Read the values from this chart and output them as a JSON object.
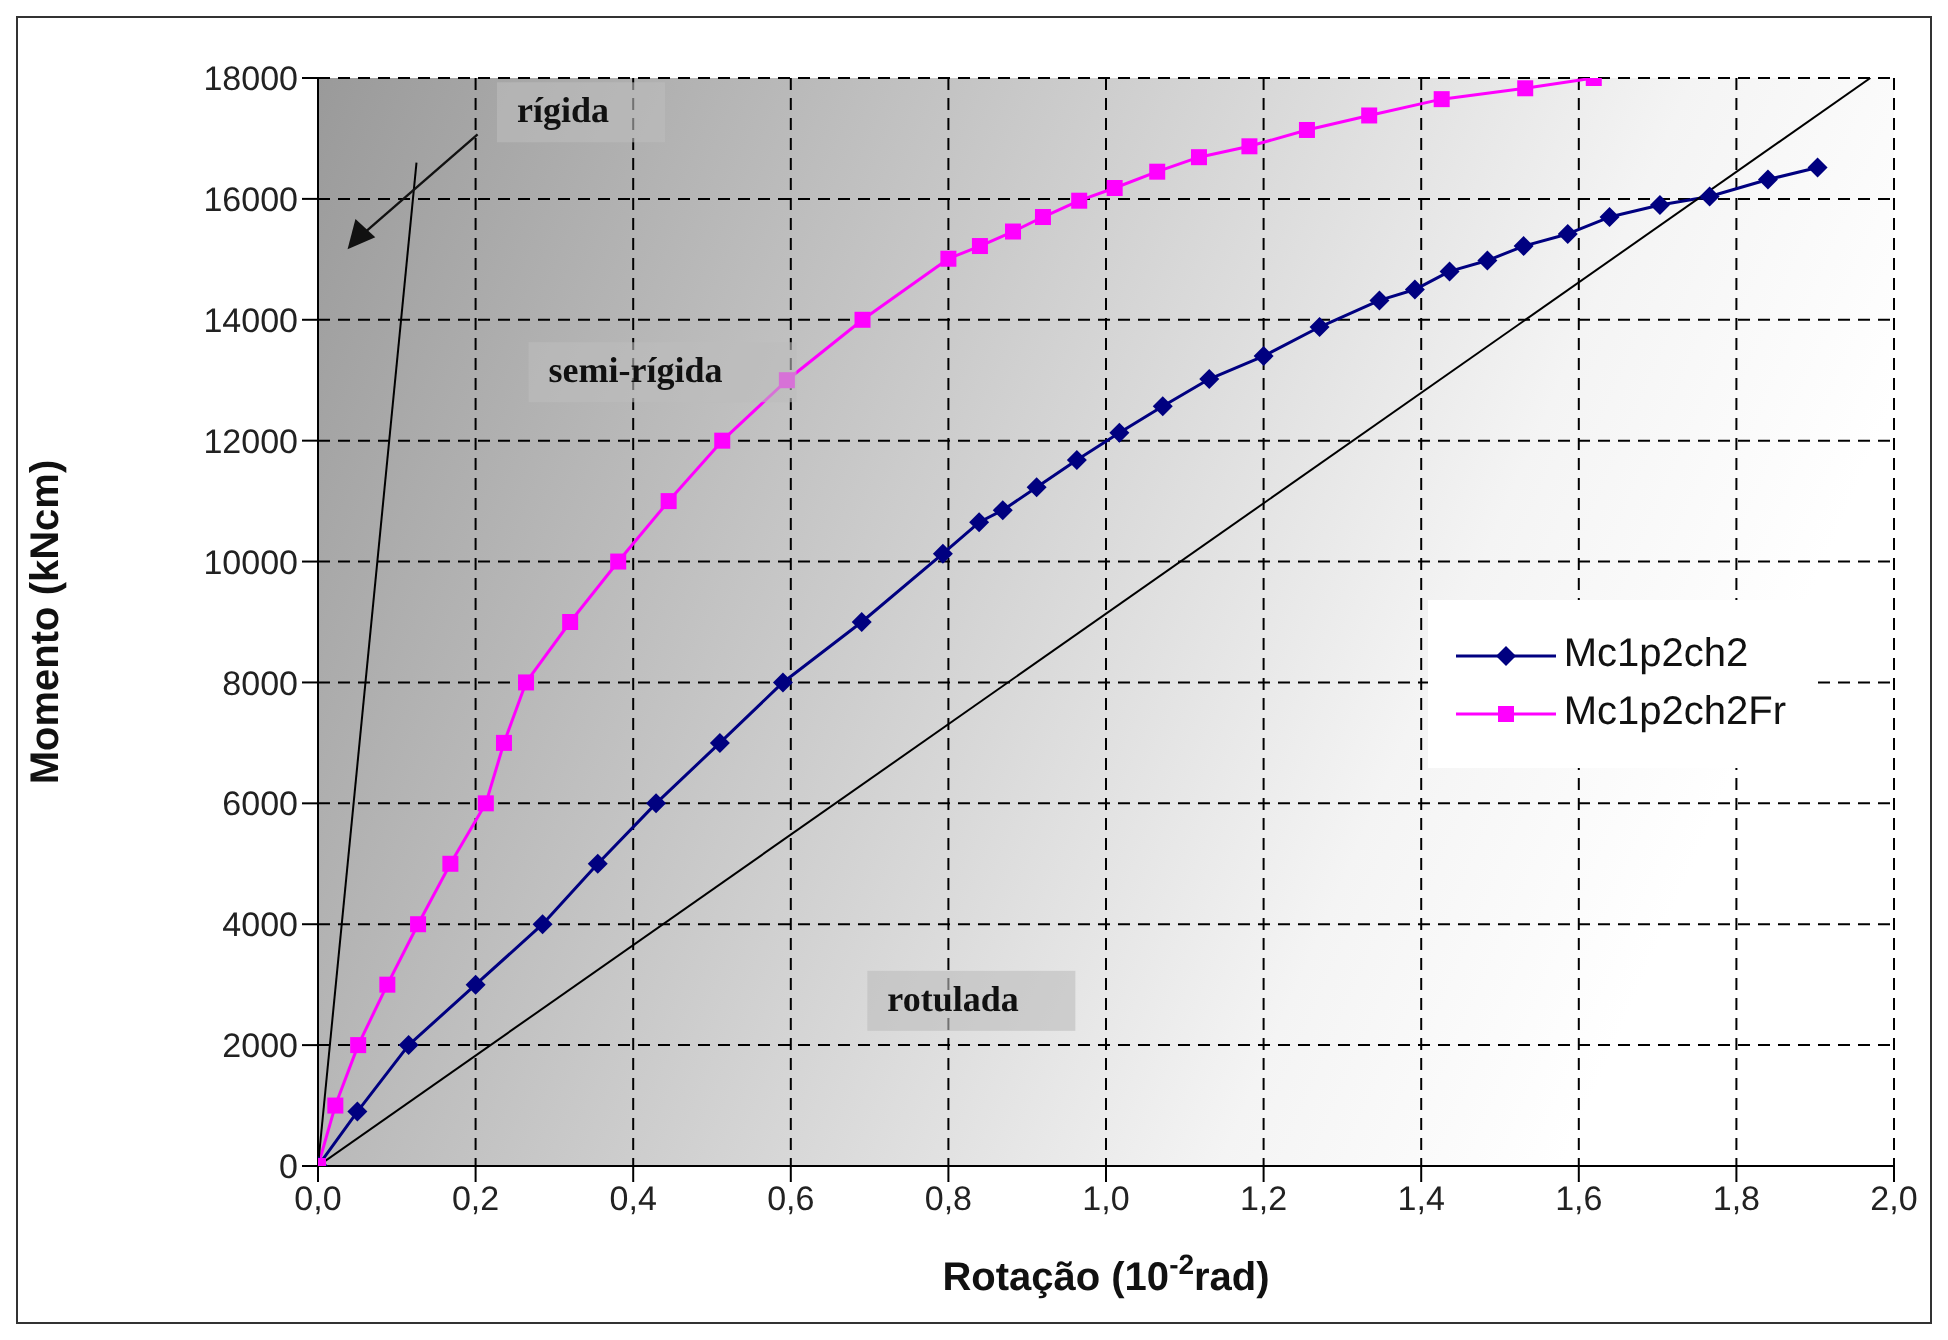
{
  "chart_data": {
    "type": "line",
    "xlabel": "Rotação (10$^{-2}$rad)",
    "ylabel": "Momento  (kNcm)",
    "xlim": [
      0,
      2
    ],
    "ylim": [
      0,
      18000
    ],
    "xticks": [
      {
        "value": 0,
        "label": "0,0"
      },
      {
        "value": 0.2,
        "label": "0,2"
      },
      {
        "value": 0.4,
        "label": "0,4"
      },
      {
        "value": 0.6,
        "label": "0,6"
      },
      {
        "value": 0.8,
        "label": "0,8"
      },
      {
        "value": 1,
        "label": "1,0"
      },
      {
        "value": 1.2,
        "label": "1,2"
      },
      {
        "value": 1.4,
        "label": "1,4"
      },
      {
        "value": 1.6,
        "label": "1,6"
      },
      {
        "value": 1.8,
        "label": "1,8"
      },
      {
        "value": 2,
        "label": "2,0"
      }
    ],
    "yticks": [
      0,
      2000,
      4000,
      6000,
      8000,
      10000,
      12000,
      14000,
      16000,
      18000
    ],
    "grid": true,
    "legend": "right",
    "annotations": [
      "rígida",
      "semi-rígida",
      "rotulada"
    ],
    "series": [
      {
        "name": "Mc1p2ch2",
        "color": "#000080",
        "marker": "diamond",
        "x": [
          0,
          0.05,
          0.115,
          0.2,
          0.285,
          0.355,
          0.429,
          0.51,
          0.59,
          0.69,
          0.793,
          0.839,
          0.869,
          0.912,
          0.963,
          1.017,
          1.072,
          1.131,
          1.2,
          1.271,
          1.347,
          1.392,
          1.436,
          1.484,
          1.53,
          1.586,
          1.639,
          1.703,
          1.766,
          1.84,
          1.903
        ],
        "values": [
          0,
          900,
          2000,
          3000,
          4000,
          5000,
          6000,
          7000,
          8000,
          9000,
          10130,
          10650,
          10850,
          11230,
          11680,
          12130,
          12570,
          13020,
          13400,
          13880,
          14320,
          14500,
          14800,
          14980,
          15220,
          15420,
          15700,
          15900,
          16040,
          16320,
          16520
        ]
      },
      {
        "name": "Mc1p2ch2Fr",
        "color": "#ff00ff",
        "marker": "square",
        "x": [
          0,
          0.022,
          0.051,
          0.088,
          0.127,
          0.168,
          0.213,
          0.236,
          0.264,
          0.32,
          0.381,
          0.445,
          0.513,
          0.595,
          0.691,
          0.8,
          0.84,
          0.882,
          0.92,
          0.966,
          1.011,
          1.065,
          1.118,
          1.182,
          1.255,
          1.334,
          1.426,
          1.532,
          1.619
        ],
        "values": [
          0,
          1000,
          2000,
          3000,
          4000,
          5000,
          6000,
          7000,
          8000,
          9000,
          10000,
          11000,
          12000,
          13000,
          14000,
          15010,
          15220,
          15460,
          15700,
          15970,
          16180,
          16450,
          16690,
          16870,
          17140,
          17380,
          17650,
          17830,
          18000
        ]
      },
      {
        "color": "#000000",
        "marker": "none",
        "x": [
          0,
          0.125
        ],
        "values": [
          0,
          16600
        ]
      },
      {
        "color": "#000000",
        "marker": "none",
        "x": [
          0,
          1.97
        ],
        "values": [
          0,
          18000
        ]
      }
    ]
  }
}
